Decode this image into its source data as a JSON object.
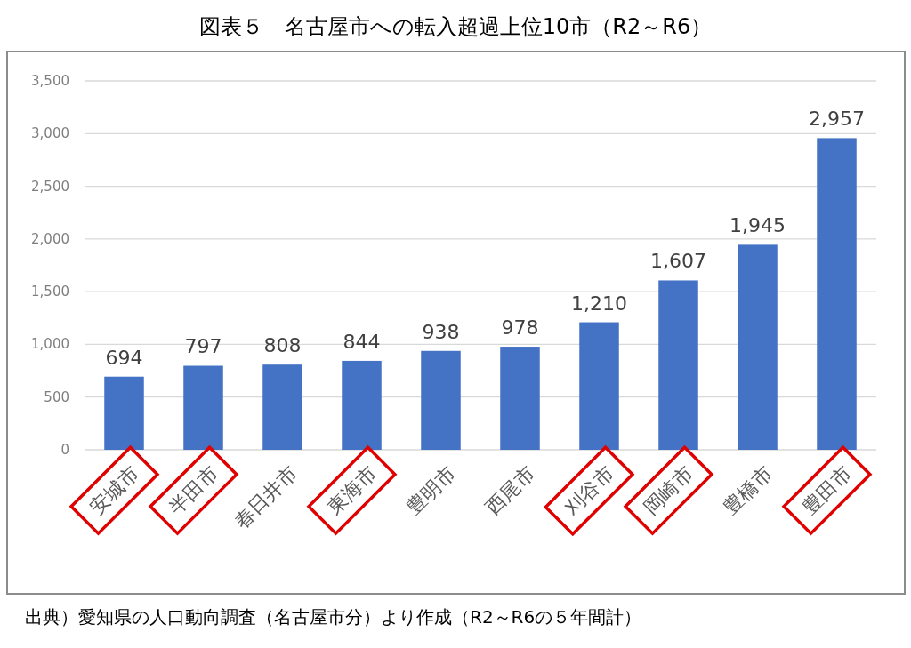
{
  "chart_data": {
    "type": "bar",
    "title": "図表５　名古屋市への転入超過上位10市（R2～R6）",
    "categories": [
      "安城市",
      "半田市",
      "春日井市",
      "東海市",
      "豊明市",
      "西尾市",
      "刈谷市",
      "岡崎市",
      "豊橋市",
      "豊田市"
    ],
    "values": [
      694,
      797,
      808,
      844,
      938,
      978,
      1210,
      1607,
      1945,
      2957
    ],
    "color": "#4472c4",
    "ylim": [
      0,
      3500
    ],
    "yticks": [
      0,
      500,
      {
        "value": 1000,
        "label": "1,000"
      },
      {
        "value": 1500,
        "label": "1,500"
      },
      {
        "value": 2000,
        "label": "2,000"
      },
      {
        "value": 2500,
        "label": "2,500"
      },
      {
        "value": 3000,
        "label": "3,000"
      },
      {
        "value": 3500,
        "label": "3,500"
      }
    ],
    "grid": "y",
    "value_labels": [
      "694",
      "797",
      "808",
      "844",
      "938",
      "978",
      "1,210",
      "1,607",
      "1,945",
      "2,957"
    ],
    "annotations": [
      "出典）愛知県の人口動向調査（名古屋市分）より作成（R2～R6の５年間計）"
    ]
  }
}
